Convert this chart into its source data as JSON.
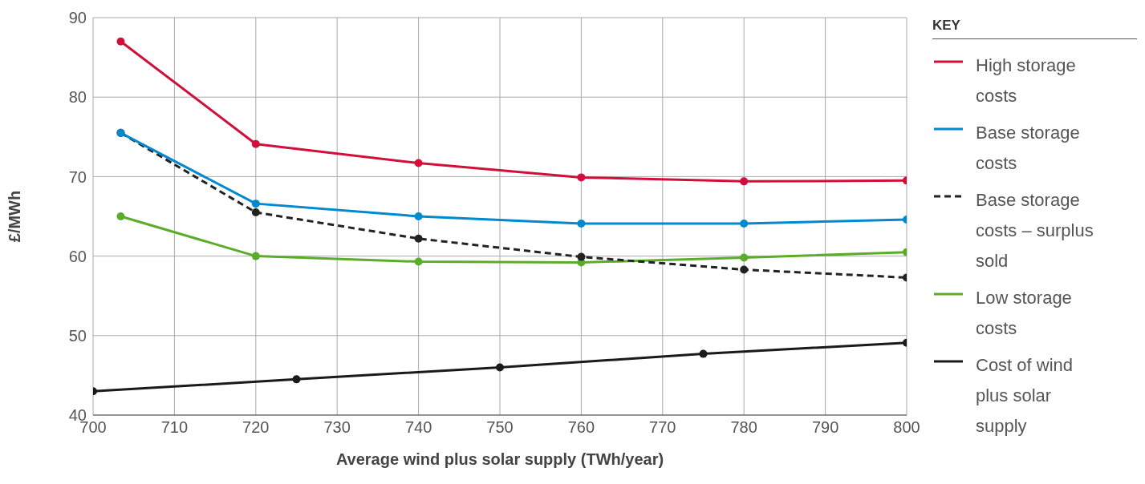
{
  "chart_data": {
    "type": "line",
    "xlabel": "Average wind plus solar supply (TWh/year)",
    "ylabel": "£/MWh",
    "legend_title": "KEY",
    "xlim": [
      700,
      800
    ],
    "xticks": [
      700,
      710,
      720,
      730,
      740,
      750,
      760,
      770,
      780,
      790,
      800
    ],
    "ylim": [
      40,
      90
    ],
    "yticks": [
      40,
      50,
      60,
      70,
      80,
      90
    ],
    "grid": true,
    "legend": "right",
    "marker": "circle",
    "line_style": "solid",
    "series": [
      {
        "name": "High storage costs",
        "color": "#d0103a",
        "x": [
          703.4,
          720,
          740,
          760,
          780,
          800
        ],
        "values": [
          87,
          74.1,
          71.7,
          69.9,
          69.4,
          69.5
        ]
      },
      {
        "name": "Base storage costs",
        "color": "#0089cf",
        "x": [
          703.4,
          720,
          740,
          760,
          780,
          800
        ],
        "values": [
          75.5,
          66.6,
          65.0,
          64.1,
          64.1,
          64.6
        ]
      },
      {
        "name": "Base storage costs – surplus sold",
        "color": "#222222",
        "line_style": "dashed",
        "x": [
          703.4,
          720,
          740,
          760,
          780,
          800
        ],
        "values": [
          75.5,
          65.5,
          62.2,
          59.9,
          58.3,
          57.3
        ]
      },
      {
        "name": "Low storage costs",
        "color": "#5aac2a",
        "x": [
          703.4,
          720,
          740,
          760,
          780,
          800
        ],
        "values": [
          65,
          60,
          59.3,
          59.2,
          59.8,
          60.5
        ]
      },
      {
        "name": "Cost of wind plus solar supply",
        "color": "#1a1a1a",
        "x": [
          700,
          725,
          750,
          775,
          800
        ],
        "values": [
          43,
          44.5,
          46,
          47.7,
          49.1
        ]
      }
    ]
  }
}
